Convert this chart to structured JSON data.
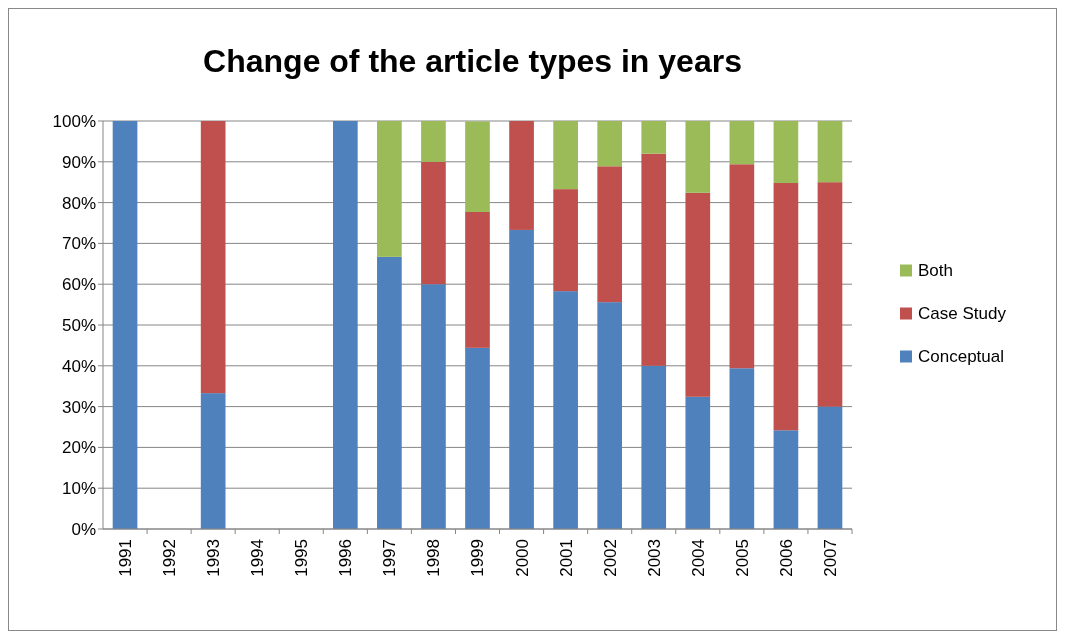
{
  "chart_data": {
    "type": "bar",
    "title": "Change of the article types in years",
    "stacked": true,
    "grid": "y",
    "legend": "right",
    "categories": [
      "1991",
      "1992",
      "1993",
      "1994",
      "1995",
      "1996",
      "1997",
      "1998",
      "1999",
      "2000",
      "2001",
      "2002",
      "2003",
      "2004",
      "2005",
      "2006",
      "2007"
    ],
    "series": [
      {
        "name": "Conceptual",
        "color": "#4f81bd",
        "values": [
          100,
          null,
          33.3,
          null,
          null,
          100,
          66.7,
          60,
          44.4,
          73.3,
          58.3,
          55.6,
          40,
          32.4,
          39.4,
          24.2,
          30
        ]
      },
      {
        "name": "Case Study",
        "color": "#c0504d",
        "values": [
          0,
          null,
          66.7,
          null,
          null,
          0,
          0,
          30,
          33.3,
          26.7,
          25,
          33.3,
          52,
          50,
          50,
          60.6,
          55
        ]
      },
      {
        "name": "Both",
        "color": "#9bbb59",
        "values": [
          0,
          null,
          0,
          null,
          null,
          0,
          33.3,
          10,
          22.2,
          0,
          16.7,
          11.1,
          8,
          17.6,
          10.6,
          15.2,
          15
        ]
      }
    ],
    "ylim": [
      0,
      100
    ],
    "yticks": [
      {
        "value": 0,
        "label": "0%"
      },
      {
        "value": 10,
        "label": "10%"
      },
      {
        "value": 20,
        "label": "20%"
      },
      {
        "value": 30,
        "label": "30%"
      },
      {
        "value": 40,
        "label": "40%"
      },
      {
        "value": 50,
        "label": "50%"
      },
      {
        "value": 60,
        "label": "60%"
      },
      {
        "value": 70,
        "label": "70%"
      },
      {
        "value": 80,
        "label": "80%"
      },
      {
        "value": 90,
        "label": "90%"
      },
      {
        "value": 100,
        "label": "100%"
      }
    ]
  }
}
